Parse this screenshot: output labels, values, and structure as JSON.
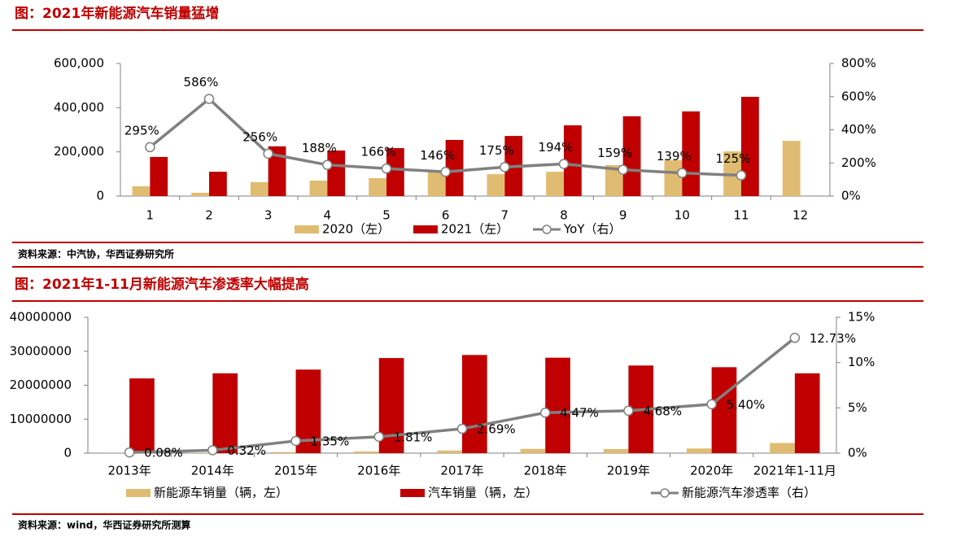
{
  "chart_data": [
    {
      "type": "combo",
      "title": "图：2021年新能源汽车销量猛增",
      "source": "资料来源：中汽协，华西证券研究所",
      "categories": [
        "1",
        "2",
        "3",
        "4",
        "5",
        "6",
        "7",
        "8",
        "9",
        "10",
        "11",
        "12"
      ],
      "ylim": [
        0,
        600000
      ],
      "yticks": [
        0,
        {
          "value": 200000,
          "label": "200,000"
        },
        {
          "value": 400000,
          "label": "400,000"
        },
        {
          "value": 600000,
          "label": "600,000"
        }
      ],
      "y2lim": [
        0,
        800
      ],
      "y2ticks": [
        {
          "value": 0,
          "label": "0%"
        },
        {
          "value": 200,
          "label": "200%"
        },
        {
          "value": 400,
          "label": "400%"
        },
        {
          "value": 600,
          "label": "600%"
        },
        {
          "value": 800,
          "label": "800%"
        }
      ],
      "series": [
        {
          "name": "2020（左）",
          "type": "bar",
          "color": "#e0bc72",
          "values": [
            44000,
            15000,
            63000,
            70000,
            81000,
            110000,
            99000,
            110000,
            140000,
            162000,
            202000,
            250000
          ]
        },
        {
          "name": "2021（左）",
          "type": "bar",
          "color": "#c00000",
          "values": [
            177000,
            110000,
            225000,
            206000,
            217000,
            254000,
            272000,
            320000,
            361000,
            383000,
            449000,
            null
          ]
        },
        {
          "name": "YoY（右）",
          "type": "line",
          "axis": "y2",
          "color": "#808080",
          "values": [
            295,
            586,
            256,
            188,
            166,
            146,
            175,
            194,
            159,
            139,
            125,
            null
          ],
          "value_labels": [
            "295%",
            "586%",
            "256%",
            "188%",
            "166%",
            "146%",
            "175%",
            "194%",
            "159%",
            "139%",
            "125%",
            null
          ]
        }
      ]
    },
    {
      "type": "combo",
      "title": "图：2021年1-11月新能源汽车渗透率大幅提高",
      "source": "资料来源：wind，华西证券研究所测算",
      "categories": [
        "2013年",
        "2014年",
        "2015年",
        "2016年",
        "2017年",
        "2018年",
        "2019年",
        "2020年",
        "2021年1-11月"
      ],
      "ylim": [
        0,
        40000000
      ],
      "yticks": [
        0,
        10000000,
        20000000,
        30000000,
        40000000
      ],
      "y2lim": [
        0,
        15
      ],
      "y2ticks": [
        {
          "value": 0,
          "label": "0%"
        },
        {
          "value": 5,
          "label": "5%"
        },
        {
          "value": 10,
          "label": "10%"
        },
        {
          "value": 15,
          "label": "15%"
        }
      ],
      "series": [
        {
          "name": "新能源车销量（辆，左）",
          "type": "bar",
          "color": "#e0bc72",
          "values": [
            18000,
            75000,
            331000,
            507000,
            777000,
            1256000,
            1206000,
            1367000,
            2990000
          ]
        },
        {
          "name": "汽车销量（辆，左）",
          "type": "bar",
          "color": "#c00000",
          "values": [
            22000000,
            23500000,
            24600000,
            28000000,
            28900000,
            28100000,
            25800000,
            25300000,
            23500000
          ]
        },
        {
          "name": "新能源汽车渗透率（右）",
          "type": "line",
          "axis": "y2",
          "color": "#808080",
          "values": [
            0.08,
            0.32,
            1.35,
            1.81,
            2.69,
            4.47,
            4.68,
            5.4,
            12.73
          ],
          "value_labels": [
            "0.08%",
            "0.32%",
            "1.35%",
            "1.81%",
            "2.69%",
            "4.47%",
            "4.68%",
            "5.40%",
            "12.73%"
          ]
        }
      ]
    }
  ]
}
